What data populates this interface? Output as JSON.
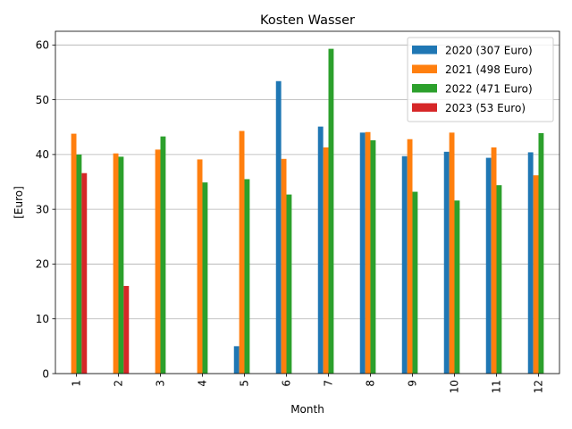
{
  "chart_data": {
    "type": "bar",
    "title": "Kosten Wasser",
    "xlabel": "Month",
    "ylabel": "[Euro]",
    "ylim": [
      0,
      62.5
    ],
    "yticks": [
      0,
      10,
      20,
      30,
      40,
      50,
      60
    ],
    "grid": "horizontal",
    "legend_position": "top-right",
    "categories": [
      "1",
      "2",
      "3",
      "4",
      "5",
      "6",
      "7",
      "8",
      "9",
      "10",
      "11",
      "12"
    ],
    "series": [
      {
        "name": "2020 (307 Euro)",
        "color": "#1f77b4",
        "values": [
          0,
          0,
          0,
          0,
          5.0,
          53.4,
          45.1,
          44.0,
          39.7,
          40.5,
          39.4,
          40.4
        ]
      },
      {
        "name": "2021 (498 Euro)",
        "color": "#ff7f0e",
        "values": [
          43.8,
          40.2,
          40.9,
          39.1,
          44.3,
          39.2,
          41.3,
          44.1,
          42.8,
          44.0,
          41.3,
          36.2
        ]
      },
      {
        "name": "2022 (471 Euro)",
        "color": "#2ca02c",
        "values": [
          40.0,
          39.6,
          43.3,
          34.9,
          35.5,
          32.7,
          59.3,
          42.6,
          33.2,
          31.6,
          34.4,
          43.9
        ]
      },
      {
        "name": "2023 (53 Euro)",
        "color": "#d62728",
        "values": [
          36.6,
          16.0,
          0,
          0,
          0,
          0,
          0,
          0,
          0,
          0,
          0,
          0
        ]
      }
    ]
  }
}
